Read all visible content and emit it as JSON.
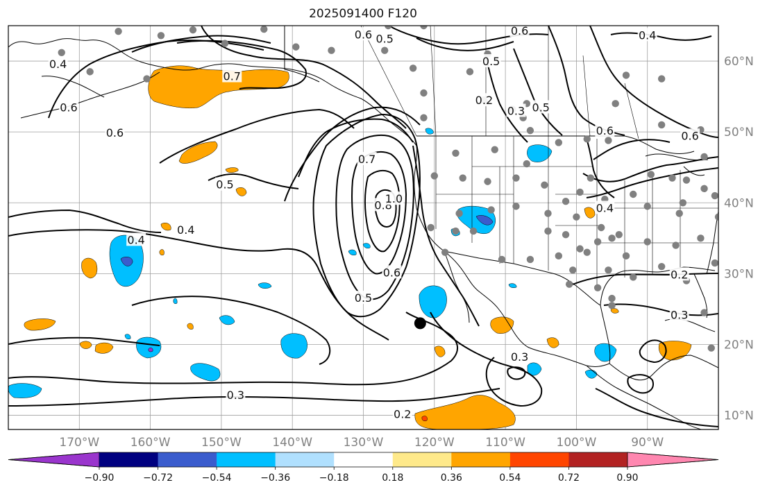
{
  "title": "2025091400 F120",
  "map": {
    "projection": "equirectangular",
    "lon_range": [
      -180,
      -80
    ],
    "lat_range": [
      8,
      65
    ],
    "grid": true,
    "lon_ticks": [
      "170°W",
      "160°W",
      "150°W",
      "140°W",
      "130°W",
      "120°W",
      "110°W",
      "100°W",
      "90°W"
    ],
    "lat_ticks": [
      "60°N",
      "50°N",
      "40°N",
      "30°N",
      "20°N",
      "10°N"
    ],
    "storm_center": {
      "lon": -122,
      "lat": 23
    },
    "contour_labels": [
      {
        "text": "0.6",
        "lon": -130,
        "lat": 63.8
      },
      {
        "text": "0.5",
        "lon": -127,
        "lat": 63.2
      },
      {
        "text": "0.6",
        "lon": -108,
        "lat": 64.3
      },
      {
        "text": "0.4",
        "lon": -90,
        "lat": 63.7
      },
      {
        "text": "0.4",
        "lon": -173,
        "lat": 59.6
      },
      {
        "text": "0.7",
        "lon": -148.5,
        "lat": 57.9
      },
      {
        "text": "0.6",
        "lon": -171.5,
        "lat": 53.5
      },
      {
        "text": "0.6",
        "lon": -165,
        "lat": 49.9
      },
      {
        "text": "0.2",
        "lon": -113,
        "lat": 54.5
      },
      {
        "text": "0.3",
        "lon": -108.5,
        "lat": 53
      },
      {
        "text": "0.5",
        "lon": -105,
        "lat": 53.5
      },
      {
        "text": "0.5",
        "lon": -112,
        "lat": 60
      },
      {
        "text": "0.6",
        "lon": -96,
        "lat": 50.2
      },
      {
        "text": "0.6",
        "lon": -84,
        "lat": 49.5
      },
      {
        "text": "0.4",
        "lon": -96,
        "lat": 39.3
      },
      {
        "text": "0.7",
        "lon": -129.5,
        "lat": 46.2
      },
      {
        "text": "0.8",
        "lon": -127.2,
        "lat": 39.7
      },
      {
        "text": "1.0",
        "lon": -125.7,
        "lat": 40.6
      },
      {
        "text": "0.5",
        "lon": -149.5,
        "lat": 42.6
      },
      {
        "text": "0.4",
        "lon": -155,
        "lat": 36.2
      },
      {
        "text": "0.4",
        "lon": -162,
        "lat": 34.8
      },
      {
        "text": "0.6",
        "lon": -126,
        "lat": 30.2
      },
      {
        "text": "0.5",
        "lon": -130,
        "lat": 26.6
      },
      {
        "text": "0.2",
        "lon": -85.5,
        "lat": 29.9
      },
      {
        "text": "0.3",
        "lon": -85.5,
        "lat": 24.2
      },
      {
        "text": "0.3",
        "lon": -108,
        "lat": 18.3
      },
      {
        "text": "0.3",
        "lon": -148,
        "lat": 12.9
      },
      {
        "text": "0.2",
        "lon": -124.5,
        "lat": 10.2
      }
    ]
  },
  "colorbar": {
    "tick_labels": [
      "−0.90",
      "−0.72",
      "−0.54",
      "−0.36",
      "−0.18",
      "0.18",
      "0.36",
      "0.54",
      "0.72",
      "0.90"
    ],
    "bins": [
      {
        "color": "#9a35cd"
      },
      {
        "color": "#000080"
      },
      {
        "color": "#3a5ccd"
      },
      {
        "color": "#00bfff"
      },
      {
        "color": "#b0e0fe"
      },
      {
        "color": "#ffffff"
      },
      {
        "color": "#fee98a"
      },
      {
        "color": "#ffa500"
      },
      {
        "color": "#ff4500"
      },
      {
        "color": "#b22222"
      },
      {
        "color": "#ff87b0"
      }
    ]
  },
  "colors": {
    "contour": "#000000",
    "station": "#808080",
    "grid": "#808080",
    "storm_center": "#000000"
  }
}
